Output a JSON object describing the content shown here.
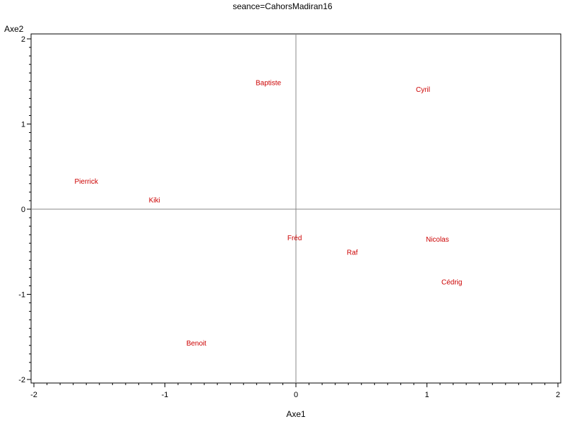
{
  "chart_data": {
    "type": "scatter",
    "title": "seance=CahorsMadiran16",
    "xlabel": "Axe1",
    "ylabel": "Axe2",
    "xlim": [
      -2,
      2
    ],
    "ylim": [
      -2,
      2
    ],
    "xticks": [
      -2,
      -1,
      0,
      1,
      2
    ],
    "yticks": [
      -2,
      -1,
      0,
      1,
      2
    ],
    "xtick_labels": [
      "-2",
      "-1",
      "0",
      "1",
      "2"
    ],
    "ytick_labels": [
      "-2",
      "-1",
      "0",
      "1",
      "2"
    ],
    "minor_ticks_per_major": 10,
    "grid": false,
    "reference_lines": [
      {
        "axis": "x",
        "value": 0
      },
      {
        "axis": "y",
        "value": 0
      }
    ],
    "label_color": "#cc0000",
    "axis_color": "#000000",
    "reference_line_color": "#888888",
    "points": [
      {
        "label": "Baptiste",
        "x": -0.21,
        "y": 1.49
      },
      {
        "label": "Cyril",
        "x": 0.97,
        "y": 1.41
      },
      {
        "label": "Pierrick",
        "x": -1.6,
        "y": 0.33
      },
      {
        "label": "Kiki",
        "x": -1.08,
        "y": 0.11
      },
      {
        "label": "Fréd",
        "x": -0.01,
        "y": -0.33
      },
      {
        "label": "Raf",
        "x": 0.43,
        "y": -0.5
      },
      {
        "label": "Nicolas",
        "x": 1.08,
        "y": -0.35
      },
      {
        "label": "Cédrig",
        "x": 1.19,
        "y": -0.85
      },
      {
        "label": "Benoit",
        "x": -0.76,
        "y": -1.57
      }
    ]
  }
}
